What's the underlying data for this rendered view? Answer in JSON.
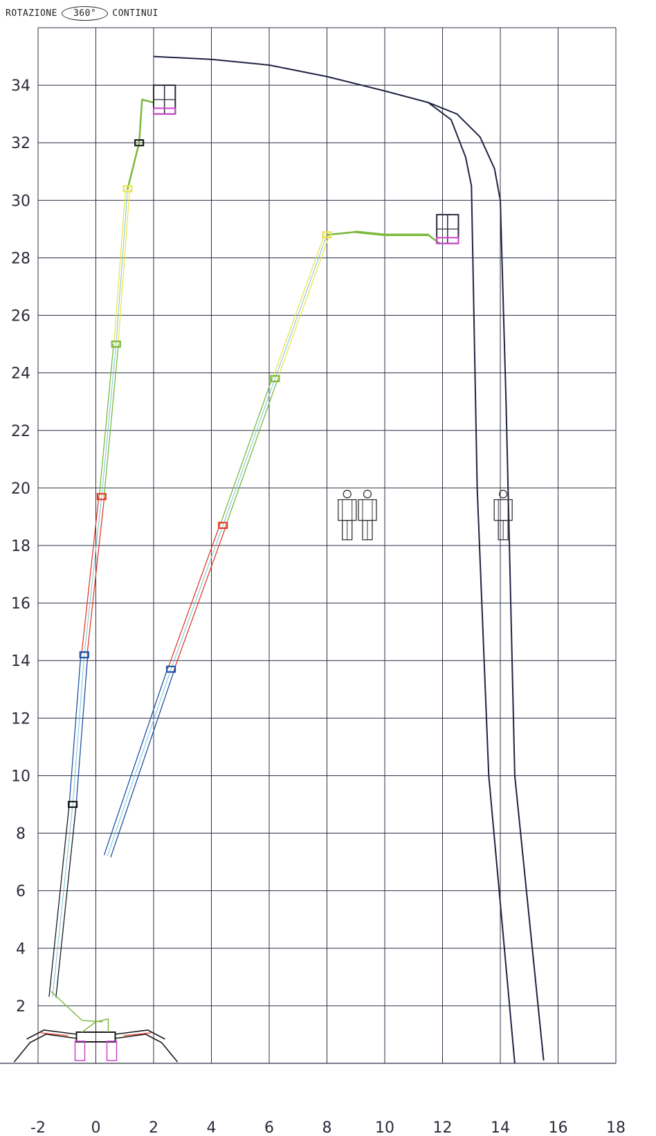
{
  "header": {
    "prefix": "ROTAZIONE",
    "rotation_value": "360°",
    "suffix": "CONTINUI"
  },
  "chart_data": {
    "type": "line",
    "xlim": [
      -2,
      18
    ],
    "ylim": [
      0,
      36
    ],
    "grid": true,
    "x_ticks": [
      -2,
      0,
      2,
      4,
      6,
      8,
      10,
      12,
      14,
      16,
      18
    ],
    "y_ticks": [
      2,
      4,
      6,
      8,
      10,
      12,
      14,
      16,
      18,
      20,
      22,
      24,
      26,
      28,
      30,
      32,
      34
    ],
    "x_tick_labels": [
      "-2",
      "0",
      "2",
      "4",
      "6",
      "8",
      "10",
      "12",
      "14",
      "16",
      "18"
    ],
    "y_tick_labels": [
      "2",
      "4",
      "6",
      "8",
      "10",
      "12",
      "14",
      "16",
      "18",
      "20",
      "22",
      "24",
      "26",
      "28",
      "30",
      "32",
      "34"
    ],
    "colors": {
      "grid": "#2b2f45",
      "envelope": "#1f2340",
      "base_boom": "#1a1a1a",
      "boom_blue": "#1f4fa3",
      "boom_cyan": "#74c7d8",
      "boom_red": "#e43a2a",
      "boom_green": "#7ab83a",
      "boom_yellow": "#eee24a",
      "basket_pink": "#cc44cc",
      "basket_dark": "#2a2a3a",
      "person": "#333333"
    },
    "series": [
      {
        "role": "envelope-outer",
        "points": [
          [
            2,
            35
          ],
          [
            4,
            34.9
          ],
          [
            6,
            34.7
          ],
          [
            8,
            34.3
          ],
          [
            10,
            33.8
          ],
          [
            11.5,
            33.4
          ],
          [
            12.5,
            33.0
          ],
          [
            13.3,
            32.2
          ],
          [
            13.8,
            31.1
          ],
          [
            14.0,
            30.0
          ],
          [
            14.2,
            23
          ],
          [
            14.5,
            10
          ],
          [
            15.5,
            0.1
          ]
        ]
      },
      {
        "role": "envelope-inner",
        "points": [
          [
            11.5,
            33.4
          ],
          [
            12.3,
            32.8
          ],
          [
            12.8,
            31.5
          ],
          [
            13.0,
            30.5
          ],
          [
            13.2,
            20
          ],
          [
            13.6,
            10
          ],
          [
            14.5,
            0
          ]
        ]
      },
      {
        "role": "boom-vertical",
        "points": [
          [
            -1.5,
            2.3
          ],
          [
            -0.8,
            9
          ],
          [
            -0.4,
            14.2
          ],
          [
            0.2,
            19.7
          ],
          [
            0.7,
            25
          ],
          [
            1.1,
            30.4
          ],
          [
            1.5,
            32.0
          ],
          [
            1.6,
            33.5
          ],
          [
            2.0,
            33.4
          ]
        ]
      },
      {
        "role": "boom-horizontal",
        "points": [
          [
            0.4,
            7.2
          ],
          [
            2.6,
            13.7
          ],
          [
            4.4,
            18.7
          ],
          [
            6.2,
            23.8
          ],
          [
            8.0,
            28.8
          ],
          [
            9.0,
            28.9
          ],
          [
            10.0,
            28.8
          ],
          [
            11.5,
            28.8
          ],
          [
            11.9,
            28.5
          ]
        ]
      }
    ],
    "baskets": [
      {
        "x": 2.0,
        "y": 33.0,
        "w": 0.75,
        "h": 1.0
      },
      {
        "x": 11.8,
        "y": 28.5,
        "w": 0.75,
        "h": 1.0
      }
    ],
    "people": [
      {
        "x": 8.7,
        "y": 18.2
      },
      {
        "x": 9.4,
        "y": 18.2
      },
      {
        "x": 14.1,
        "y": 18.2
      }
    ]
  }
}
